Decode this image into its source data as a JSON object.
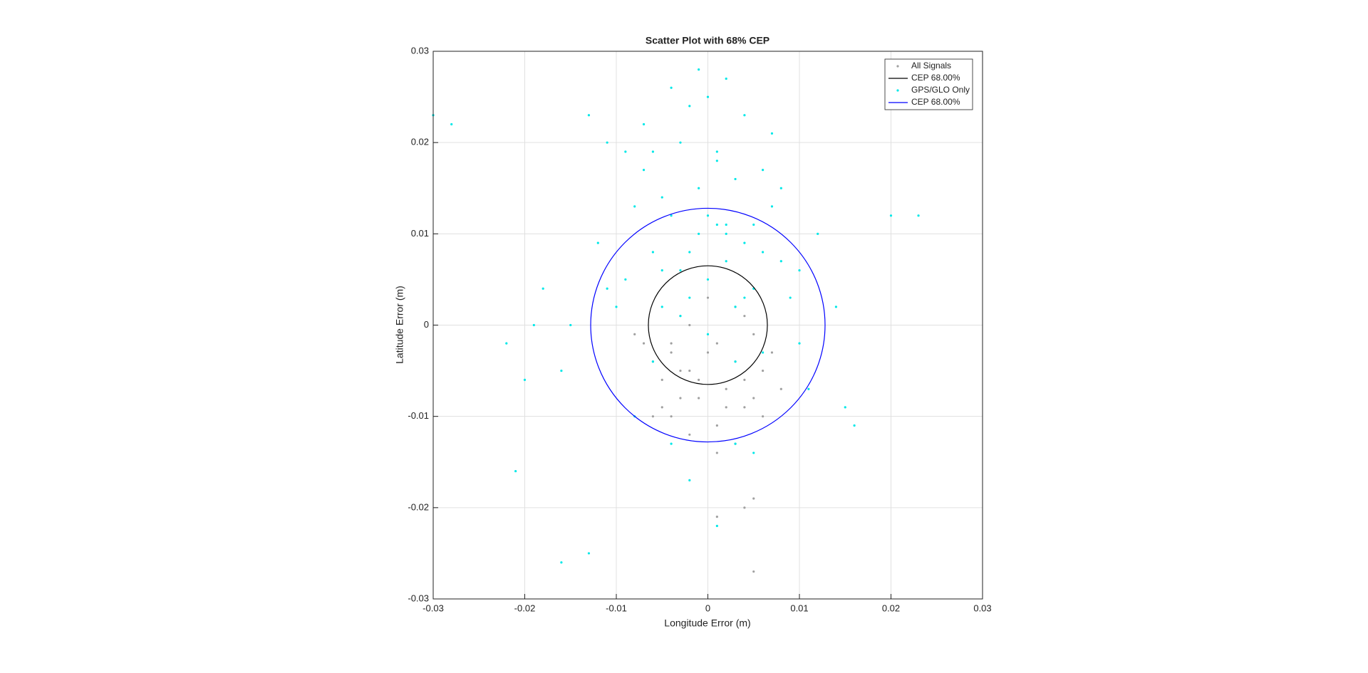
{
  "chart_data": {
    "type": "scatter",
    "title": "Scatter Plot with 68% CEP",
    "x_label": "Longitude Error (m)",
    "y_label": "Latitude Error (m)",
    "xlim": [
      -0.03,
      0.03
    ],
    "ylim": [
      -0.03,
      0.03
    ],
    "xticks": [
      -0.03,
      -0.02,
      -0.01,
      0,
      0.01,
      0.02,
      0.03
    ],
    "yticks": [
      -0.03,
      -0.02,
      -0.01,
      0,
      0.01,
      0.02,
      0.03
    ],
    "grid": true,
    "legend": "northeast",
    "series": [
      {
        "name": "All Signals",
        "type": "scatter",
        "color": "#a0a0a0",
        "x": [
          -0.004,
          -0.002,
          0.001,
          0.003,
          -0.005,
          0.005,
          -0.001,
          0.002,
          -0.003,
          0.004,
          -0.006,
          0.006,
          0,
          -0.002,
          0.003,
          -0.004,
          0.001,
          -0.007,
          0.007,
          -0.001,
          0.002,
          -0.003,
          0.004,
          -0.005,
          0.005,
          0,
          -0.008,
          0.008,
          -0.002,
          0.003,
          0.001,
          -0.004,
          0.004,
          -0.006,
          0.006,
          0.005,
          0.004,
          0.001,
          -0.003,
          0.005
        ],
        "y": [
          -0.003,
          -0.005,
          -0.002,
          -0.004,
          -0.006,
          -0.001,
          -0.008,
          -0.007,
          0.001,
          -0.009,
          -0.004,
          -0.005,
          -0.003,
          0,
          0.002,
          -0.01,
          -0.011,
          -0.002,
          -0.003,
          -0.006,
          -0.009,
          -0.008,
          -0.006,
          -0.009,
          -0.008,
          0.003,
          -0.001,
          -0.007,
          -0.012,
          -0.013,
          -0.014,
          -0.002,
          0.001,
          -0.01,
          -0.01,
          -0.019,
          -0.02,
          -0.021,
          -0.005,
          -0.027
        ]
      },
      {
        "name": "CEP 68.00%",
        "type": "circle",
        "color": "#000000",
        "center": [
          0,
          0
        ],
        "radius": 0.0065
      },
      {
        "name": "GPS/GLO Only",
        "type": "scatter",
        "color": "#00e8e8",
        "x": [
          0,
          -0.002,
          0.002,
          -0.004,
          0.004,
          -0.001,
          0.001,
          -0.003,
          0.003,
          -0.005,
          0.005,
          -0.006,
          0.006,
          -0.007,
          0.007,
          0,
          -0.002,
          0.002,
          -0.004,
          0.004,
          -0.008,
          0.008,
          -0.009,
          0.009,
          -0.01,
          0.01,
          -0.011,
          0.011,
          -0.012,
          -0.006,
          0.006,
          -0.003,
          0.003,
          0,
          -0.005,
          0.005,
          -0.007,
          0.007,
          -0.001,
          0.001,
          -0.009,
          0.008,
          -0.013,
          0.012,
          -0.015,
          0.014,
          -0.016,
          0.015,
          -0.018,
          -0.02,
          0.02,
          0.023,
          -0.028,
          -0.022,
          -0.021,
          -0.016,
          -0.013,
          -0.019,
          0.016,
          -0.002,
          0.001,
          0.003,
          -0.004,
          0.002,
          -0.008,
          0.005,
          -0.011,
          0.01,
          -0.006,
          0.004,
          -0.003,
          0,
          0.002,
          -0.001,
          -0.005,
          0.006,
          0.003,
          -0.002,
          0.001,
          -0.03
        ],
        "y": [
          0.005,
          0.008,
          0.01,
          0.012,
          0.009,
          0.015,
          0.018,
          0.02,
          0.016,
          0.014,
          0.011,
          0.019,
          0.017,
          0.022,
          0.021,
          0.025,
          0.024,
          0.027,
          0.026,
          0.023,
          0.013,
          0.007,
          0.005,
          0.003,
          0.002,
          -0.002,
          0.004,
          -0.007,
          0.009,
          -0.004,
          -0.003,
          0.001,
          0.002,
          -0.001,
          0.006,
          0.004,
          0.017,
          0.013,
          0.028,
          0.019,
          0.019,
          0.015,
          0.023,
          0.01,
          0,
          0.002,
          -0.005,
          -0.009,
          0.004,
          -0.006,
          0.012,
          0.012,
          0.022,
          -0.002,
          -0.016,
          -0.026,
          -0.025,
          0,
          -0.011,
          -0.017,
          -0.022,
          -0.013,
          -0.013,
          0.011,
          -0.01,
          -0.014,
          0.02,
          0.006,
          0.008,
          0.003,
          0.006,
          0.012,
          0.007,
          0.01,
          0.002,
          0.008,
          -0.004,
          0.003,
          0.011,
          0.023
        ]
      },
      {
        "name": "CEP 68.00%",
        "type": "circle",
        "color": "#0000ff",
        "center": [
          0,
          0
        ],
        "radius": 0.0128
      }
    ]
  }
}
